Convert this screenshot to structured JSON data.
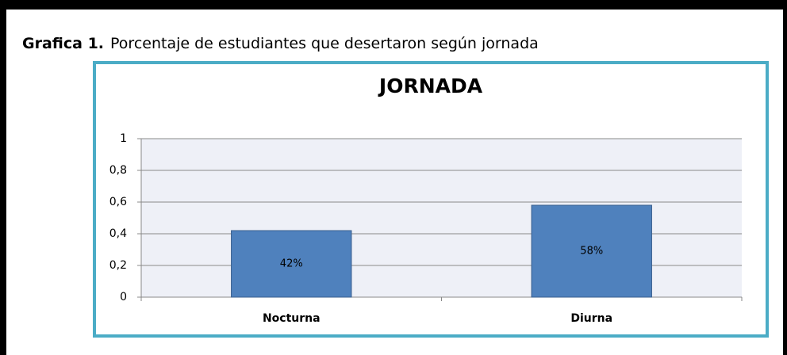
{
  "caption": {
    "label": "Grafica 1.",
    "text": "Porcentaje de estudiantes que desertaron según jornada"
  },
  "chart_data": {
    "type": "bar",
    "title": "JORNADA",
    "categories": [
      "Nocturna",
      "Diurna"
    ],
    "values": [
      0.42,
      0.58
    ],
    "value_labels": [
      "42%",
      "58%"
    ],
    "color": "#4f81bd",
    "ylim": [
      0,
      1
    ],
    "yticks": [
      0,
      {
        "value": 0.2,
        "label": "0,2"
      },
      {
        "value": 0.4,
        "label": "0,4"
      },
      {
        "value": 0.6,
        "label": "0,6"
      },
      {
        "value": 0.8,
        "label": "0,8"
      },
      1
    ],
    "grid": true
  }
}
